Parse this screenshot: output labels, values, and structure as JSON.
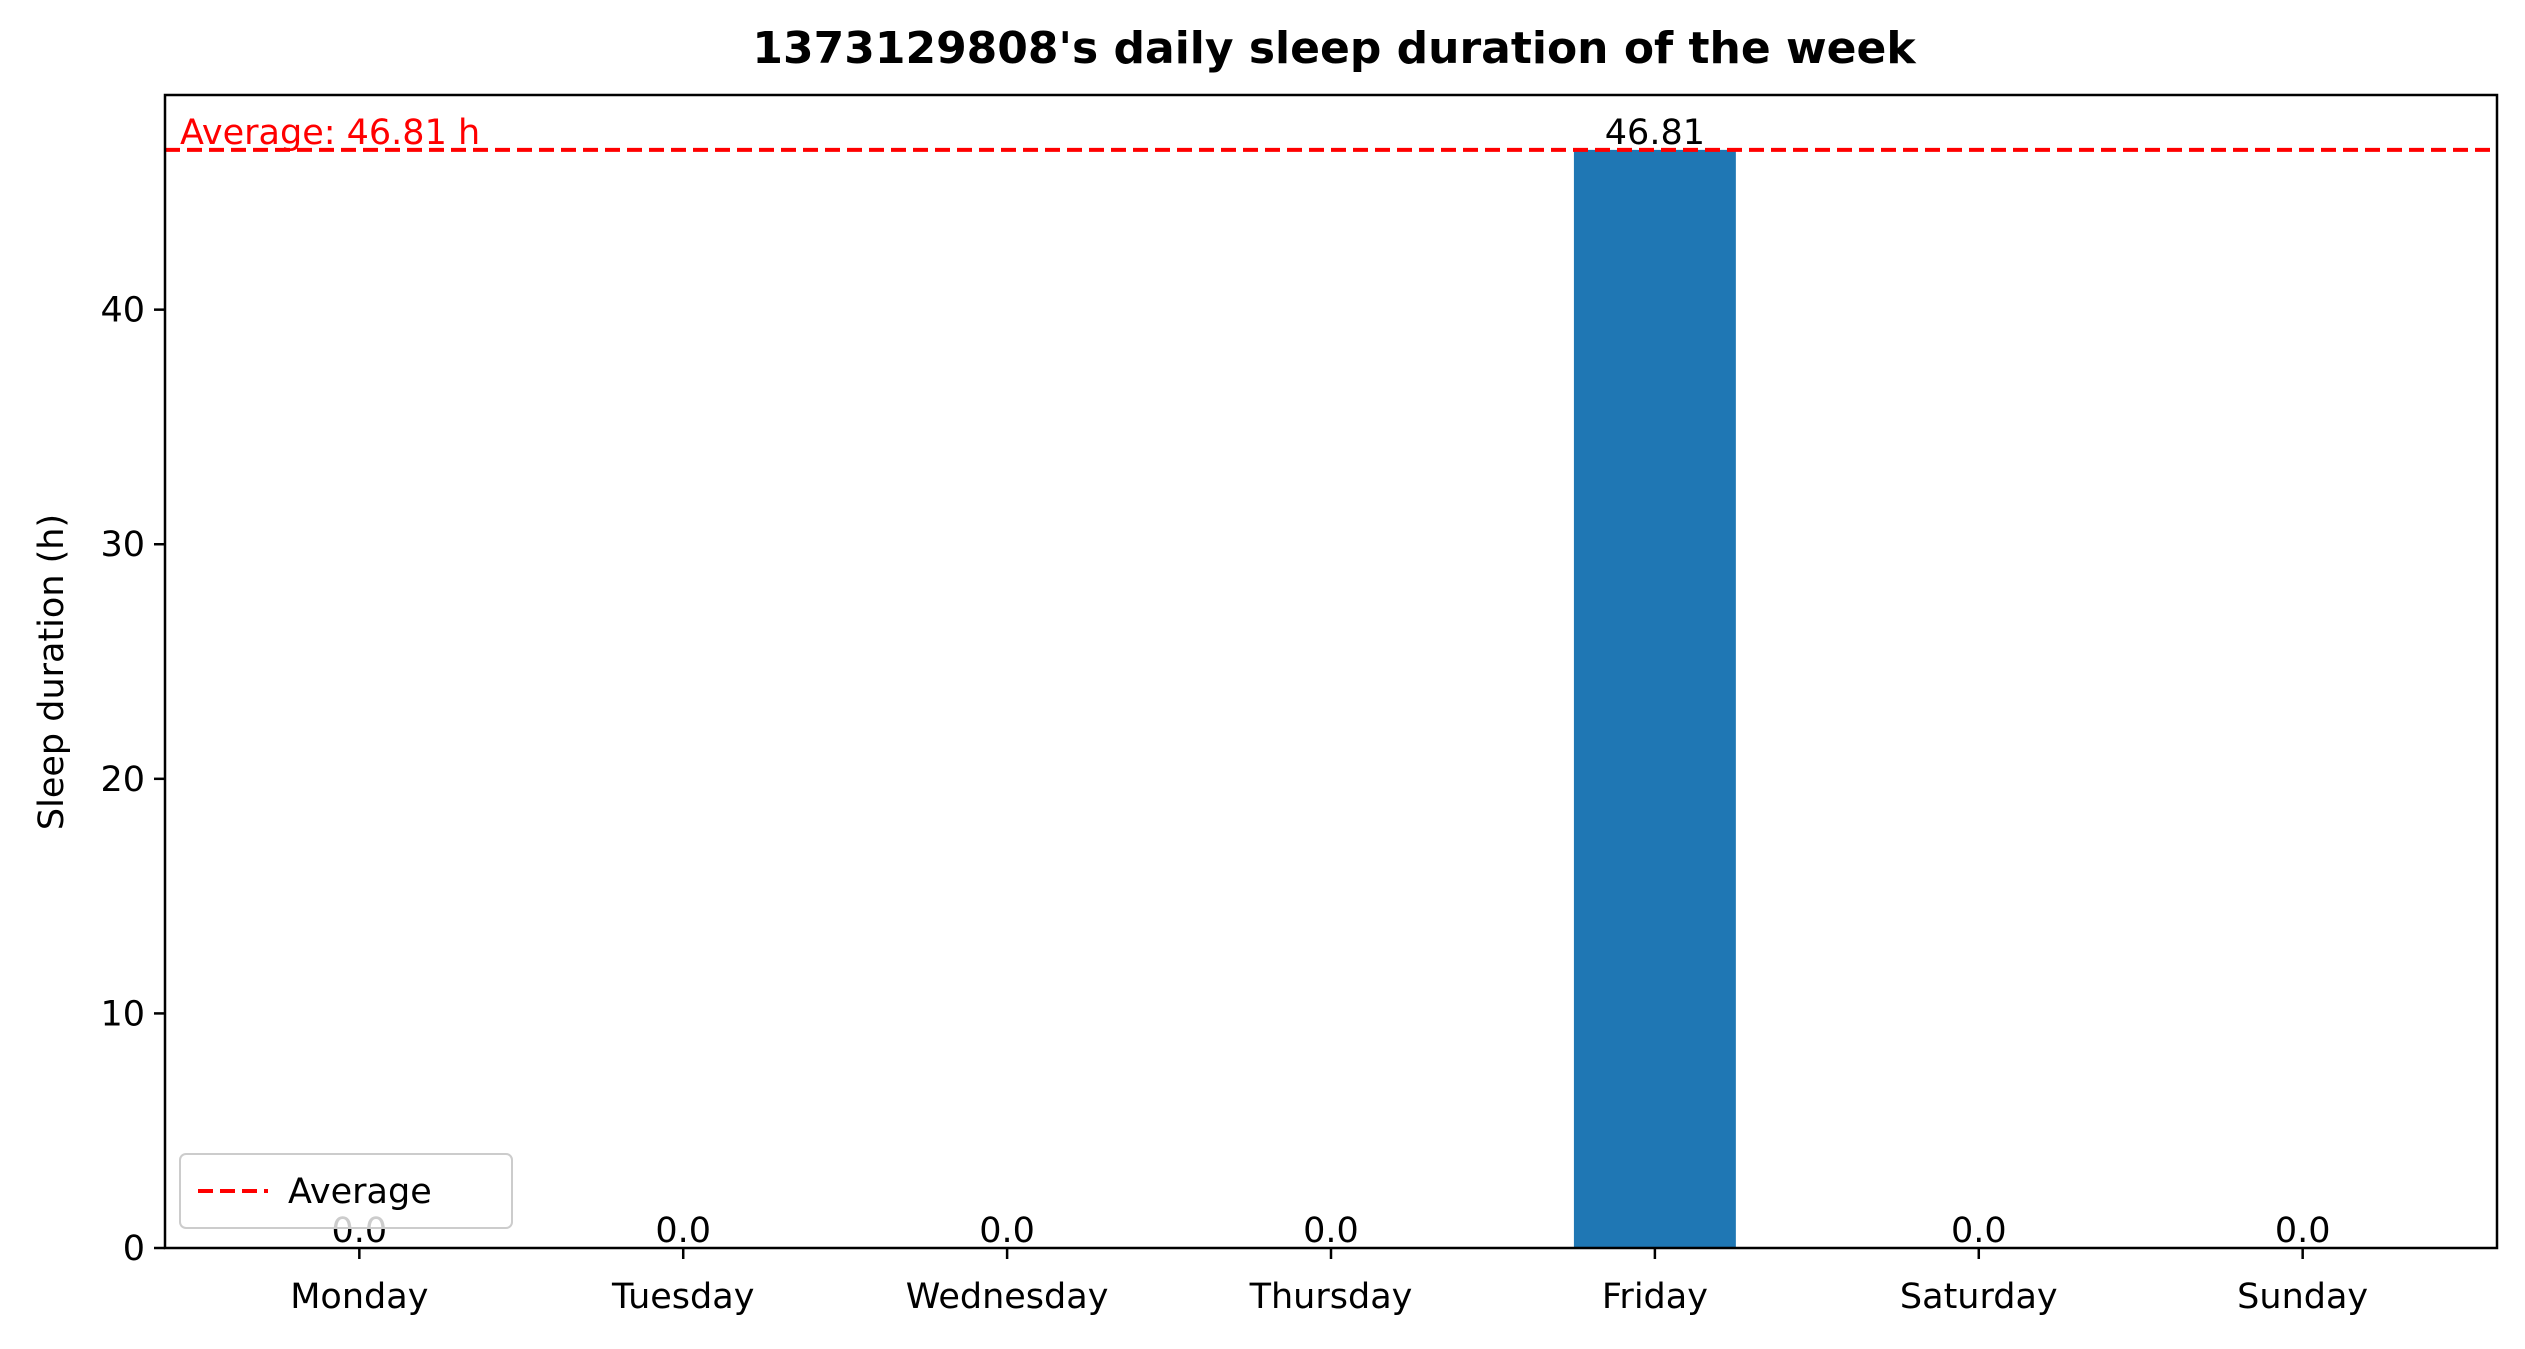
{
  "chart_data": {
    "type": "bar",
    "title": "1373129808's daily sleep duration of the week",
    "xlabel": "",
    "ylabel": "Sleep duration (h)",
    "categories": [
      "Monday",
      "Tuesday",
      "Wednesday",
      "Thursday",
      "Friday",
      "Saturday",
      "Sunday"
    ],
    "values": [
      0.0,
      0.0,
      0.0,
      0.0,
      46.81,
      0.0,
      0.0
    ],
    "value_labels": [
      "0.0",
      "0.0",
      "0.0",
      "0.0",
      "46.81",
      "0.0",
      "0.0"
    ],
    "ylim": [
      0,
      49.15
    ],
    "yticks": [
      0,
      10,
      20,
      30,
      40
    ],
    "grid": false,
    "bar_color": "#1f77b4",
    "average": {
      "value": 46.81,
      "label": "Average: 46.81 h",
      "legend_label": "Average",
      "color": "#ff0000",
      "style": "dashed"
    },
    "legend": {
      "placement": "lower-left",
      "entries": [
        "Average"
      ]
    }
  }
}
